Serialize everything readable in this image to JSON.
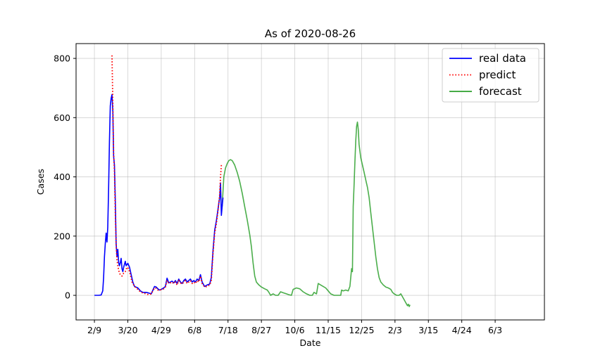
{
  "chart_data": {
    "type": "line",
    "title": "As of 2020-08-26",
    "xlabel": "Date",
    "ylabel": "Cases",
    "x_unit": "days since 2020-02-09 (tick labels are month/day)",
    "xlim": [
      -22,
      539
    ],
    "ylim": [
      -83,
      850
    ],
    "x_ticks": [
      {
        "x": 0,
        "label": "2/9"
      },
      {
        "x": 40,
        "label": "3/20"
      },
      {
        "x": 80,
        "label": "4/29"
      },
      {
        "x": 120,
        "label": "6/8"
      },
      {
        "x": 160,
        "label": "7/18"
      },
      {
        "x": 200,
        "label": "8/27"
      },
      {
        "x": 240,
        "label": "10/6"
      },
      {
        "x": 280,
        "label": "11/15"
      },
      {
        "x": 320,
        "label": "12/25"
      },
      {
        "x": 360,
        "label": "2/3"
      },
      {
        "x": 400,
        "label": "3/15"
      },
      {
        "x": 440,
        "label": "4/24"
      },
      {
        "x": 480,
        "label": "6/3"
      }
    ],
    "y_ticks": [
      0,
      200,
      400,
      600,
      800
    ],
    "grid": true,
    "legend_position": "top-right",
    "series": [
      {
        "name": "real data",
        "color": "#0000ff",
        "style": "solid",
        "points": [
          [
            0,
            0
          ],
          [
            5,
            0
          ],
          [
            8,
            1
          ],
          [
            10,
            15
          ],
          [
            11,
            60
          ],
          [
            12,
            130
          ],
          [
            13,
            175
          ],
          [
            14,
            210
          ],
          [
            15,
            180
          ],
          [
            16,
            230
          ],
          [
            17,
            360
          ],
          [
            18,
            520
          ],
          [
            19,
            640
          ],
          [
            20,
            665
          ],
          [
            21,
            678
          ],
          [
            22,
            620
          ],
          [
            23,
            470
          ],
          [
            24,
            440
          ],
          [
            25,
            320
          ],
          [
            26,
            175
          ],
          [
            27,
            130
          ],
          [
            28,
            155
          ],
          [
            29,
            110
          ],
          [
            30,
            100
          ],
          [
            31,
            110
          ],
          [
            32,
            125
          ],
          [
            33,
            90
          ],
          [
            34,
            80
          ],
          [
            35,
            95
          ],
          [
            37,
            115
          ],
          [
            38,
            100
          ],
          [
            40,
            108
          ],
          [
            42,
            95
          ],
          [
            44,
            70
          ],
          [
            46,
            45
          ],
          [
            48,
            30
          ],
          [
            52,
            25
          ],
          [
            55,
            15
          ],
          [
            58,
            10
          ],
          [
            62,
            10
          ],
          [
            65,
            8
          ],
          [
            68,
            5
          ],
          [
            70,
            18
          ],
          [
            72,
            30
          ],
          [
            74,
            28
          ],
          [
            76,
            22
          ],
          [
            78,
            18
          ],
          [
            80,
            20
          ],
          [
            83,
            25
          ],
          [
            85,
            30
          ],
          [
            87,
            58
          ],
          [
            89,
            42
          ],
          [
            91,
            45
          ],
          [
            93,
            48
          ],
          [
            95,
            42
          ],
          [
            97,
            50
          ],
          [
            99,
            40
          ],
          [
            101,
            55
          ],
          [
            103,
            45
          ],
          [
            105,
            40
          ],
          [
            107,
            50
          ],
          [
            109,
            55
          ],
          [
            111,
            45
          ],
          [
            113,
            50
          ],
          [
            115,
            55
          ],
          [
            117,
            45
          ],
          [
            119,
            50
          ],
          [
            121,
            45
          ],
          [
            123,
            55
          ],
          [
            125,
            50
          ],
          [
            127,
            70
          ],
          [
            129,
            45
          ],
          [
            132,
            30
          ],
          [
            135,
            35
          ],
          [
            138,
            38
          ],
          [
            140,
            60
          ],
          [
            142,
            150
          ],
          [
            144,
            220
          ],
          [
            146,
            250
          ],
          [
            148,
            290
          ],
          [
            150,
            330
          ],
          [
            151,
            380
          ],
          [
            152,
            270
          ],
          [
            153,
            300
          ],
          [
            154,
            330
          ]
        ]
      },
      {
        "name": "predict",
        "color": "#ff0000",
        "style": "dotted",
        "points": [
          [
            21,
            810
          ],
          [
            22,
            650
          ],
          [
            23,
            480
          ],
          [
            24,
            420
          ],
          [
            25,
            280
          ],
          [
            26,
            170
          ],
          [
            27,
            120
          ],
          [
            28,
            100
          ],
          [
            29,
            85
          ],
          [
            30,
            75
          ],
          [
            31,
            70
          ],
          [
            33,
            65
          ],
          [
            35,
            75
          ],
          [
            37,
            80
          ],
          [
            39,
            95
          ],
          [
            41,
            90
          ],
          [
            43,
            70
          ],
          [
            45,
            45
          ],
          [
            48,
            30
          ],
          [
            52,
            20
          ],
          [
            55,
            12
          ],
          [
            58,
            8
          ],
          [
            62,
            5
          ],
          [
            65,
            2
          ],
          [
            68,
            5
          ],
          [
            70,
            15
          ],
          [
            72,
            25
          ],
          [
            74,
            24
          ],
          [
            76,
            18
          ],
          [
            78,
            16
          ],
          [
            80,
            20
          ],
          [
            83,
            22
          ],
          [
            85,
            28
          ],
          [
            87,
            50
          ],
          [
            89,
            40
          ],
          [
            91,
            42
          ],
          [
            93,
            45
          ],
          [
            95,
            40
          ],
          [
            97,
            45
          ],
          [
            99,
            35
          ],
          [
            101,
            50
          ],
          [
            103,
            42
          ],
          [
            105,
            38
          ],
          [
            107,
            45
          ],
          [
            109,
            50
          ],
          [
            111,
            40
          ],
          [
            113,
            45
          ],
          [
            115,
            50
          ],
          [
            117,
            40
          ],
          [
            119,
            45
          ],
          [
            121,
            40
          ],
          [
            123,
            50
          ],
          [
            125,
            45
          ],
          [
            127,
            65
          ],
          [
            129,
            40
          ],
          [
            132,
            28
          ],
          [
            135,
            30
          ],
          [
            138,
            35
          ],
          [
            140,
            50
          ],
          [
            142,
            140
          ],
          [
            144,
            210
          ],
          [
            146,
            240
          ],
          [
            148,
            285
          ],
          [
            150,
            340
          ],
          [
            151,
            400
          ],
          [
            152,
            440
          ]
        ]
      },
      {
        "name": "forecast",
        "color": "#2ca02c",
        "style": "solid",
        "points": [
          [
            153,
            300
          ],
          [
            154,
            350
          ],
          [
            155,
            400
          ],
          [
            157,
            430
          ],
          [
            159,
            445
          ],
          [
            161,
            455
          ],
          [
            163,
            458
          ],
          [
            165,
            455
          ],
          [
            168,
            440
          ],
          [
            171,
            415
          ],
          [
            174,
            385
          ],
          [
            177,
            345
          ],
          [
            180,
            300
          ],
          [
            183,
            255
          ],
          [
            186,
            205
          ],
          [
            188,
            165
          ],
          [
            190,
            110
          ],
          [
            192,
            65
          ],
          [
            194,
            45
          ],
          [
            197,
            35
          ],
          [
            200,
            28
          ],
          [
            204,
            22
          ],
          [
            207,
            18
          ],
          [
            209,
            10
          ],
          [
            211,
            0
          ],
          [
            214,
            5
          ],
          [
            217,
            0
          ],
          [
            220,
            0
          ],
          [
            223,
            12
          ],
          [
            227,
            8
          ],
          [
            230,
            5
          ],
          [
            233,
            2
          ],
          [
            236,
            0
          ],
          [
            238,
            20
          ],
          [
            242,
            25
          ],
          [
            246,
            22
          ],
          [
            250,
            12
          ],
          [
            254,
            5
          ],
          [
            258,
            0
          ],
          [
            261,
            0
          ],
          [
            263,
            10
          ],
          [
            266,
            5
          ],
          [
            268,
            40
          ],
          [
            271,
            35
          ],
          [
            274,
            30
          ],
          [
            277,
            25
          ],
          [
            280,
            15
          ],
          [
            283,
            5
          ],
          [
            287,
            0
          ],
          [
            291,
            0
          ],
          [
            295,
            0
          ],
          [
            296,
            18
          ],
          [
            298,
            15
          ],
          [
            301,
            18
          ],
          [
            304,
            15
          ],
          [
            306,
            30
          ],
          [
            307,
            60
          ],
          [
            308,
            90
          ],
          [
            309,
            80
          ],
          [
            310,
            300
          ],
          [
            311,
            370
          ],
          [
            312,
            450
          ],
          [
            313,
            520
          ],
          [
            314,
            570
          ],
          [
            315,
            585
          ],
          [
            316,
            560
          ],
          [
            317,
            510
          ],
          [
            319,
            465
          ],
          [
            321,
            440
          ],
          [
            323,
            415
          ],
          [
            325,
            390
          ],
          [
            327,
            365
          ],
          [
            329,
            330
          ],
          [
            331,
            280
          ],
          [
            333,
            230
          ],
          [
            335,
            180
          ],
          [
            337,
            130
          ],
          [
            339,
            90
          ],
          [
            341,
            60
          ],
          [
            343,
            45
          ],
          [
            346,
            35
          ],
          [
            349,
            28
          ],
          [
            352,
            25
          ],
          [
            355,
            20
          ],
          [
            357,
            10
          ],
          [
            359,
            5
          ],
          [
            362,
            0
          ],
          [
            365,
            0
          ],
          [
            367,
            5
          ],
          [
            369,
            -5
          ],
          [
            371,
            -15
          ],
          [
            373,
            -25
          ],
          [
            375,
            -35
          ],
          [
            376,
            -30
          ],
          [
            377,
            -38
          ],
          [
            378,
            -32
          ]
        ]
      }
    ]
  }
}
